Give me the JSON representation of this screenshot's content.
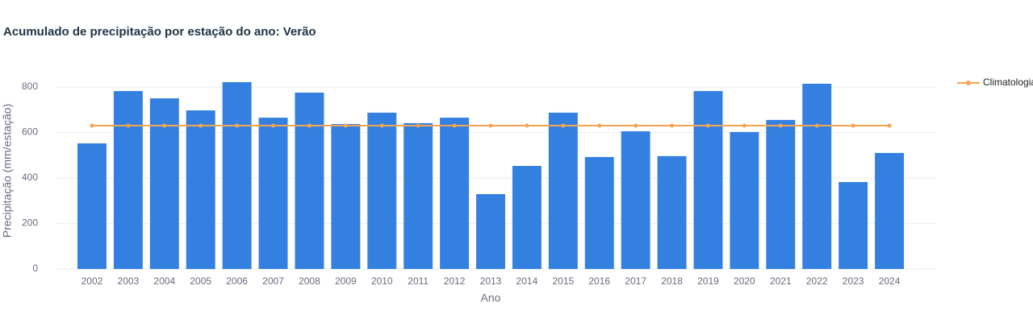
{
  "chart_data": {
    "type": "bar",
    "title": "Acumulado de precipitação por estação do ano: Verão",
    "x_label": "Ano",
    "y_label": "Precipitação (mm/estação)",
    "categories": [
      "2002",
      "2003",
      "2004",
      "2005",
      "2006",
      "2007",
      "2008",
      "2009",
      "2010",
      "2011",
      "2012",
      "2013",
      "2014",
      "2015",
      "2016",
      "2017",
      "2018",
      "2019",
      "2020",
      "2021",
      "2022",
      "2023",
      "2024"
    ],
    "values": [
      552,
      782,
      750,
      697,
      821,
      665,
      775,
      637,
      687,
      641,
      665,
      329,
      453,
      687,
      492,
      605,
      496,
      782,
      602,
      655,
      814,
      382,
      510
    ],
    "color": "#3480e0",
    "line": {
      "name": "Climatologia",
      "color": "#f5a452",
      "values": [
        630,
        630,
        630,
        630,
        630,
        630,
        630,
        630,
        630,
        630,
        630,
        630,
        630,
        630,
        630,
        630,
        630,
        630,
        630,
        630,
        630,
        630,
        630
      ]
    },
    "ylim": [
      0,
      860
    ],
    "yticks": [
      0,
      200,
      400,
      600,
      800
    ],
    "grid": true
  }
}
